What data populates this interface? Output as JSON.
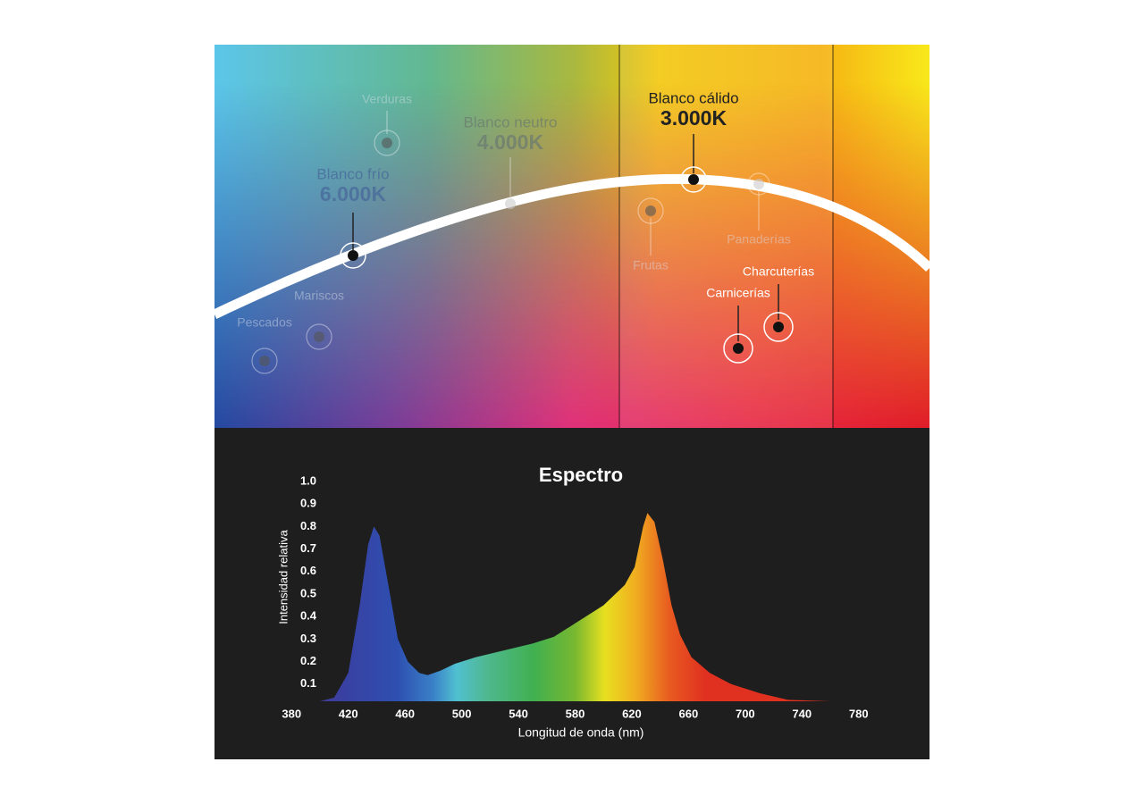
{
  "infographic": {
    "temperatures": [
      {
        "name": "Blanco frío",
        "kelvin": "6.000K"
      },
      {
        "name": "Blanco neutro",
        "kelvin": "4.000K"
      },
      {
        "name": "Blanco cálido",
        "kelvin": "3.000K"
      }
    ],
    "products": [
      "Verduras",
      "Mariscos",
      "Pescados",
      "Frutas",
      "Panaderías",
      "Charcuterías",
      "Carnicerías"
    ]
  },
  "chart_data": {
    "type": "area",
    "title": "Espectro",
    "x_label": "Longitud de onda (nm)",
    "y_label": "Intensidad relativa",
    "x": [
      371,
      390,
      400,
      410,
      420,
      428,
      434,
      438,
      442,
      448,
      455,
      462,
      470,
      476,
      485,
      495,
      510,
      530,
      550,
      565,
      580,
      600,
      615,
      622,
      628,
      631,
      636,
      642,
      648,
      654,
      662,
      675,
      690,
      710,
      730,
      760,
      789
    ],
    "values": [
      0.0,
      0.005,
      0.01,
      0.04,
      0.15,
      0.45,
      0.72,
      0.8,
      0.76,
      0.55,
      0.3,
      0.2,
      0.15,
      0.14,
      0.16,
      0.19,
      0.22,
      0.25,
      0.28,
      0.31,
      0.37,
      0.45,
      0.54,
      0.62,
      0.8,
      0.86,
      0.82,
      0.65,
      0.45,
      0.32,
      0.22,
      0.15,
      0.1,
      0.06,
      0.03,
      0.01,
      0.005
    ],
    "xlim": [
      371,
      789
    ],
    "ylim": [
      0,
      1
    ],
    "xticks": [
      380,
      420,
      460,
      500,
      540,
      580,
      620,
      660,
      700,
      740,
      780
    ],
    "yticks": [
      0.1,
      0.2,
      0.3,
      0.4,
      0.5,
      0.6,
      0.7,
      0.8,
      0.9,
      {
        "value": 1,
        "label": "1.0"
      }
    ]
  }
}
